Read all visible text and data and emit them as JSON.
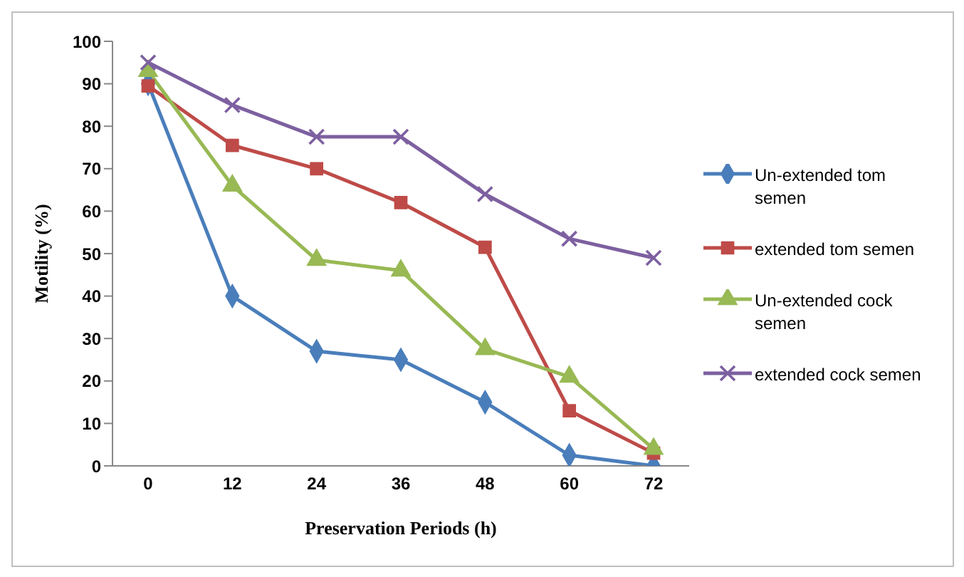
{
  "chart_data": {
    "type": "line",
    "xlabel": "Preservation Periods (h)",
    "ylabel": "Motility (%)",
    "categories": [
      "0",
      "12",
      "24",
      "36",
      "48",
      "60",
      "72"
    ],
    "series": [
      {
        "name": "Un-extended tom semen",
        "color": "#4a7ebb",
        "marker": "diamond",
        "values": [
          90,
          40,
          27,
          25,
          15,
          2.5,
          0
        ]
      },
      {
        "name": "extended tom semen",
        "color": "#be4b48",
        "marker": "square",
        "values": [
          89.5,
          75.5,
          70,
          62,
          51.5,
          13,
          3
        ]
      },
      {
        "name": "Un-extended cock semen",
        "color": "#98b954",
        "marker": "triangle",
        "values": [
          93,
          66,
          48.5,
          46,
          27.5,
          21,
          4
        ]
      },
      {
        "name": "extended cock semen",
        "color": "#7d60a0",
        "marker": "cross",
        "values": [
          95,
          85,
          77.5,
          77.5,
          64,
          53.5,
          49
        ]
      }
    ],
    "ylim": [
      0,
      100
    ],
    "yticks": [
      0,
      10,
      20,
      30,
      40,
      50,
      60,
      70,
      80,
      90,
      100
    ],
    "grid": false,
    "legend": "right",
    "line_style": "solid"
  }
}
